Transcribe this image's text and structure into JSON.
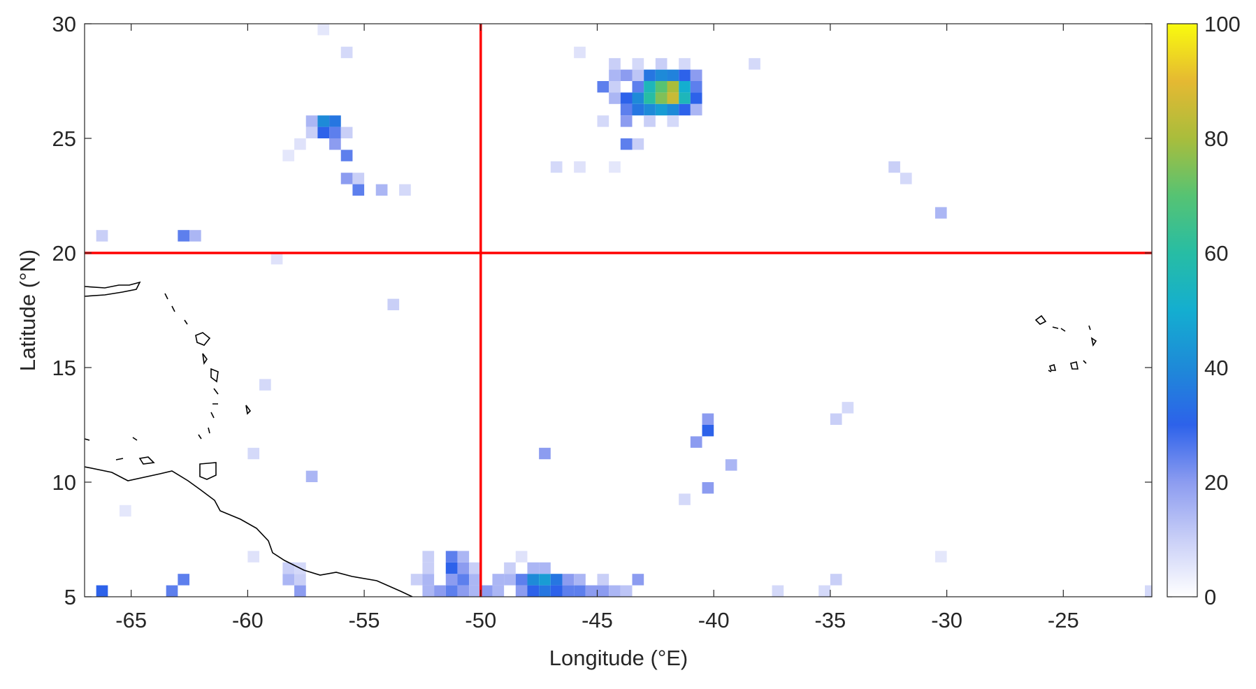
{
  "chart_data": {
    "type": "heatmap",
    "xlabel": "Longitude (°E)",
    "ylabel": "Latitude (°N)",
    "xlim": [
      -67,
      -21.2
    ],
    "ylim": [
      5,
      30
    ],
    "xticks": [
      -65,
      -60,
      -55,
      -50,
      -45,
      -40,
      -35,
      -30,
      -25
    ],
    "yticks": [
      5,
      10,
      15,
      20,
      25,
      30
    ],
    "clim": [
      0,
      100
    ],
    "cticks": [
      0,
      20,
      40,
      60,
      80,
      100
    ],
    "colormap": [
      "#ffffff",
      "#c9cff7",
      "#8c9cf0",
      "#2d62ea",
      "#1e8ad8",
      "#14aed0",
      "#27bda4",
      "#56c373",
      "#a9bd3c",
      "#e5b932",
      "#f9fb0e"
    ],
    "reference_lines": {
      "color": "#ff0000",
      "x": [
        -50
      ],
      "y": [
        20
      ]
    },
    "cells": [
      {
        "x": -44.25,
        "y": 27.75,
        "value": 15
      },
      {
        "x": -43.75,
        "y": 27.75,
        "value": 20
      },
      {
        "x": -43.25,
        "y": 27.75,
        "value": 12
      },
      {
        "x": -42.75,
        "y": 27.75,
        "value": 35
      },
      {
        "x": -42.25,
        "y": 27.75,
        "value": 40
      },
      {
        "x": -41.75,
        "y": 27.75,
        "value": 38
      },
      {
        "x": -41.25,
        "y": 27.75,
        "value": 30
      },
      {
        "x": -40.75,
        "y": 27.75,
        "value": 20
      },
      {
        "x": -44.75,
        "y": 27.25,
        "value": 25
      },
      {
        "x": -44.25,
        "y": 27.25,
        "value": 10
      },
      {
        "x": -43.25,
        "y": 27.25,
        "value": 25
      },
      {
        "x": -42.75,
        "y": 27.25,
        "value": 55
      },
      {
        "x": -42.25,
        "y": 27.25,
        "value": 70
      },
      {
        "x": -41.75,
        "y": 27.25,
        "value": 80
      },
      {
        "x": -41.25,
        "y": 27.25,
        "value": 50
      },
      {
        "x": -40.75,
        "y": 27.25,
        "value": 25
      },
      {
        "x": -44.25,
        "y": 26.75,
        "value": 15
      },
      {
        "x": -43.75,
        "y": 26.75,
        "value": 30
      },
      {
        "x": -43.25,
        "y": 26.75,
        "value": 40
      },
      {
        "x": -42.75,
        "y": 26.75,
        "value": 60
      },
      {
        "x": -42.25,
        "y": 26.75,
        "value": 75
      },
      {
        "x": -41.75,
        "y": 26.75,
        "value": 85
      },
      {
        "x": -41.25,
        "y": 26.75,
        "value": 55
      },
      {
        "x": -40.75,
        "y": 26.75,
        "value": 30
      },
      {
        "x": -43.75,
        "y": 26.25,
        "value": 25
      },
      {
        "x": -43.25,
        "y": 26.25,
        "value": 35
      },
      {
        "x": -42.75,
        "y": 26.25,
        "value": 40
      },
      {
        "x": -42.25,
        "y": 26.25,
        "value": 45
      },
      {
        "x": -41.75,
        "y": 26.25,
        "value": 40
      },
      {
        "x": -41.25,
        "y": 26.25,
        "value": 30
      },
      {
        "x": -40.75,
        "y": 26.25,
        "value": 15
      },
      {
        "x": -44.75,
        "y": 25.75,
        "value": 8
      },
      {
        "x": -43.75,
        "y": 25.75,
        "value": 20
      },
      {
        "x": -42.75,
        "y": 25.75,
        "value": 10
      },
      {
        "x": -41.75,
        "y": 25.75,
        "value": 8
      },
      {
        "x": -44.25,
        "y": 28.25,
        "value": 10
      },
      {
        "x": -43.25,
        "y": 28.25,
        "value": 8
      },
      {
        "x": -42.25,
        "y": 28.25,
        "value": 10
      },
      {
        "x": -41.25,
        "y": 28.25,
        "value": 8
      },
      {
        "x": -43.75,
        "y": 24.75,
        "value": 25
      },
      {
        "x": -43.25,
        "y": 24.75,
        "value": 10
      },
      {
        "x": -46.75,
        "y": 23.75,
        "value": 8
      },
      {
        "x": -45.75,
        "y": 23.75,
        "value": 6
      },
      {
        "x": -44.25,
        "y": 23.75,
        "value": 5
      },
      {
        "x": -57.25,
        "y": 25.75,
        "value": 15
      },
      {
        "x": -56.75,
        "y": 25.75,
        "value": 40
      },
      {
        "x": -56.25,
        "y": 25.75,
        "value": 35
      },
      {
        "x": -57.25,
        "y": 25.25,
        "value": 10
      },
      {
        "x": -56.75,
        "y": 25.25,
        "value": 30
      },
      {
        "x": -56.25,
        "y": 25.25,
        "value": 25
      },
      {
        "x": -55.75,
        "y": 25.25,
        "value": 10
      },
      {
        "x": -56.25,
        "y": 24.75,
        "value": 20
      },
      {
        "x": -57.75,
        "y": 24.75,
        "value": 6
      },
      {
        "x": -55.75,
        "y": 24.25,
        "value": 25
      },
      {
        "x": -58.25,
        "y": 24.25,
        "value": 5
      },
      {
        "x": -55.75,
        "y": 23.25,
        "value": 20
      },
      {
        "x": -55.25,
        "y": 23.25,
        "value": 10
      },
      {
        "x": -55.25,
        "y": 22.75,
        "value": 25
      },
      {
        "x": -54.25,
        "y": 22.75,
        "value": 15
      },
      {
        "x": -53.25,
        "y": 22.75,
        "value": 8
      },
      {
        "x": -55.75,
        "y": 28.75,
        "value": 8
      },
      {
        "x": -56.75,
        "y": 29.75,
        "value": 5
      },
      {
        "x": -62.75,
        "y": 20.75,
        "value": 25
      },
      {
        "x": -62.25,
        "y": 20.75,
        "value": 15
      },
      {
        "x": -66.25,
        "y": 20.75,
        "value": 10
      },
      {
        "x": -52.25,
        "y": 5.25,
        "value": 15
      },
      {
        "x": -51.75,
        "y": 5.25,
        "value": 20
      },
      {
        "x": -51.25,
        "y": 5.25,
        "value": 25
      },
      {
        "x": -50.75,
        "y": 5.25,
        "value": 20
      },
      {
        "x": -50.25,
        "y": 5.25,
        "value": 15
      },
      {
        "x": -49.75,
        "y": 5.25,
        "value": 20
      },
      {
        "x": -49.25,
        "y": 5.25,
        "value": 15
      },
      {
        "x": -48.25,
        "y": 5.25,
        "value": 20
      },
      {
        "x": -47.75,
        "y": 5.25,
        "value": 30
      },
      {
        "x": -47.25,
        "y": 5.25,
        "value": 35
      },
      {
        "x": -46.75,
        "y": 5.25,
        "value": 30
      },
      {
        "x": -46.25,
        "y": 5.25,
        "value": 25
      },
      {
        "x": -45.75,
        "y": 5.25,
        "value": 25
      },
      {
        "x": -45.25,
        "y": 5.25,
        "value": 20
      },
      {
        "x": -44.75,
        "y": 5.25,
        "value": 20
      },
      {
        "x": -44.25,
        "y": 5.25,
        "value": 15
      },
      {
        "x": -43.75,
        "y": 5.25,
        "value": 12
      },
      {
        "x": -66.25,
        "y": 5.25,
        "value": 30
      },
      {
        "x": -63.25,
        "y": 5.25,
        "value": 25
      },
      {
        "x": -57.75,
        "y": 5.25,
        "value": 20
      },
      {
        "x": -52.75,
        "y": 5.75,
        "value": 10
      },
      {
        "x": -52.25,
        "y": 5.75,
        "value": 15
      },
      {
        "x": -51.25,
        "y": 5.75,
        "value": 20
      },
      {
        "x": -50.75,
        "y": 5.75,
        "value": 25
      },
      {
        "x": -50.25,
        "y": 5.75,
        "value": 15
      },
      {
        "x": -49.25,
        "y": 5.75,
        "value": 15
      },
      {
        "x": -48.75,
        "y": 5.75,
        "value": 15
      },
      {
        "x": -48.25,
        "y": 5.75,
        "value": 25
      },
      {
        "x": -47.75,
        "y": 5.75,
        "value": 40
      },
      {
        "x": -47.25,
        "y": 5.75,
        "value": 45
      },
      {
        "x": -46.75,
        "y": 5.75,
        "value": 35
      },
      {
        "x": -46.25,
        "y": 5.75,
        "value": 20
      },
      {
        "x": -45.75,
        "y": 5.75,
        "value": 15
      },
      {
        "x": -44.75,
        "y": 5.75,
        "value": 10
      },
      {
        "x": -43.25,
        "y": 5.75,
        "value": 20
      },
      {
        "x": -58.25,
        "y": 5.75,
        "value": 15
      },
      {
        "x": -57.75,
        "y": 5.75,
        "value": 10
      },
      {
        "x": -62.75,
        "y": 5.75,
        "value": 25
      },
      {
        "x": -52.25,
        "y": 6.25,
        "value": 10
      },
      {
        "x": -51.25,
        "y": 6.25,
        "value": 30
      },
      {
        "x": -50.75,
        "y": 6.25,
        "value": 20
      },
      {
        "x": -50.25,
        "y": 6.25,
        "value": 10
      },
      {
        "x": -48.75,
        "y": 6.25,
        "value": 10
      },
      {
        "x": -47.75,
        "y": 6.25,
        "value": 15
      },
      {
        "x": -47.25,
        "y": 6.25,
        "value": 15
      },
      {
        "x": -58.25,
        "y": 6.25,
        "value": 10
      },
      {
        "x": -57.75,
        "y": 6.25,
        "value": 8
      },
      {
        "x": -52.25,
        "y": 6.75,
        "value": 10
      },
      {
        "x": -51.25,
        "y": 6.75,
        "value": 25
      },
      {
        "x": -50.75,
        "y": 6.75,
        "value": 15
      },
      {
        "x": -48.25,
        "y": 6.75,
        "value": 6
      },
      {
        "x": -59.75,
        "y": 6.75,
        "value": 6
      },
      {
        "x": -40.25,
        "y": 12.75,
        "value": 20
      },
      {
        "x": -40.25,
        "y": 12.25,
        "value": 30
      },
      {
        "x": -40.75,
        "y": 11.75,
        "value": 20
      },
      {
        "x": -39.25,
        "y": 10.75,
        "value": 15
      },
      {
        "x": -40.25,
        "y": 9.75,
        "value": 20
      },
      {
        "x": -41.25,
        "y": 9.25,
        "value": 8
      },
      {
        "x": -47.25,
        "y": 11.25,
        "value": 20
      },
      {
        "x": -34.75,
        "y": 12.75,
        "value": 10
      },
      {
        "x": -34.25,
        "y": 13.25,
        "value": 8
      },
      {
        "x": -32.25,
        "y": 23.75,
        "value": 10
      },
      {
        "x": -31.75,
        "y": 23.25,
        "value": 8
      },
      {
        "x": -30.25,
        "y": 21.75,
        "value": 15
      },
      {
        "x": -53.75,
        "y": 17.75,
        "value": 10
      },
      {
        "x": -59.25,
        "y": 14.25,
        "value": 8
      },
      {
        "x": -59.75,
        "y": 11.25,
        "value": 8
      },
      {
        "x": -57.25,
        "y": 10.25,
        "value": 15
      },
      {
        "x": -65.25,
        "y": 8.75,
        "value": 5
      },
      {
        "x": -34.75,
        "y": 5.75,
        "value": 10
      },
      {
        "x": -35.25,
        "y": 5.25,
        "value": 8
      },
      {
        "x": -37.25,
        "y": 5.25,
        "value": 8
      },
      {
        "x": -30.25,
        "y": 6.75,
        "value": 5
      },
      {
        "x": -21.25,
        "y": 5.25,
        "value": 8
      },
      {
        "x": -38.25,
        "y": 28.25,
        "value": 8
      },
      {
        "x": -58.75,
        "y": 19.75,
        "value": 6
      },
      {
        "x": -45.75,
        "y": 28.75,
        "value": 6
      }
    ]
  }
}
